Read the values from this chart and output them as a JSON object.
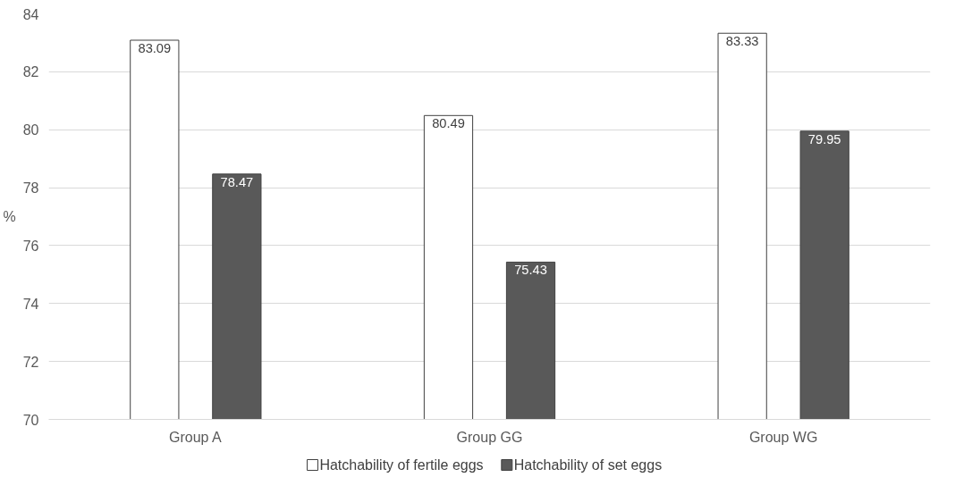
{
  "chart_data": {
    "type": "bar",
    "ylabel": "%",
    "categories": [
      "Group A",
      "Group GG",
      "Group WG"
    ],
    "series": [
      {
        "name": "Hatchability of fertile eggs",
        "color": "#ffffff",
        "values": [
          83.09,
          80.49,
          83.33
        ]
      },
      {
        "name": "Hatchability of set eggs",
        "color": "#595959",
        "values": [
          78.47,
          75.43,
          79.95
        ]
      }
    ],
    "ylim": [
      70,
      84
    ],
    "yticks": [
      70,
      72,
      74,
      76,
      78,
      80,
      82,
      84
    ],
    "grid": "y",
    "legend": "bottom",
    "data_labels": true
  }
}
